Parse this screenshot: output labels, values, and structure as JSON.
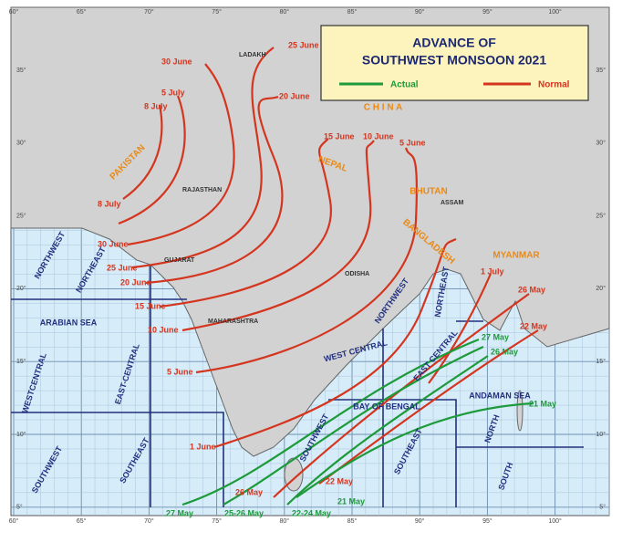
{
  "title": [
    "ADVANCE OF",
    "SOUTHWEST MONSOON 2021"
  ],
  "legend": {
    "actual": "Actual",
    "normal": "Normal"
  },
  "lon_labels": [
    "60°",
    "65°",
    "70°",
    "75°",
    "80°",
    "85°",
    "90°",
    "95°",
    "100°"
  ],
  "lat_labels": [
    "35°",
    "30°",
    "25°",
    "20°",
    "15°",
    "10°",
    "5°"
  ],
  "normal_dates": [
    "25 June",
    "30 June",
    "5 July",
    "8 July",
    "20 June",
    "15 June",
    "10 June",
    "5 June",
    "8 July",
    "30 June",
    "25 June",
    "20 June",
    "15 June",
    "10 June",
    "5 June",
    "1 June",
    "1 July",
    "26 May",
    "22 May",
    "22 May",
    "26 May"
  ],
  "actual_dates": [
    "27 May",
    "25-26 May",
    "22-24 May",
    "27 May",
    "26 May",
    "21 May",
    "21 May"
  ],
  "regions": [
    "NORTHWEST",
    "NORTHEAST",
    "ARABIAN SEA",
    "WESTCENTRAL",
    "EAST-CENTRAL",
    "SOUTHWEST",
    "SOUTHEAST",
    "WEST CENTRAL",
    "NORTHWEST",
    "NORTHEAST",
    "EAST CENTRAL",
    "SOUTHWEST",
    "SOUTHEAST",
    "BAY OF BENGAL",
    "ANDAMAN SEA",
    "NORTH",
    "SOUTH"
  ],
  "countries": [
    "PAKISTAN",
    "NEPAL",
    "BHUTAN",
    "BANGLADESH",
    "MYANMAR",
    "C H I N A"
  ],
  "states": [
    "LADAKH",
    "RAJASTHAN",
    "GUJARAT",
    "MAHARASHTRA",
    "ODISHA",
    "ASSAM"
  ]
}
